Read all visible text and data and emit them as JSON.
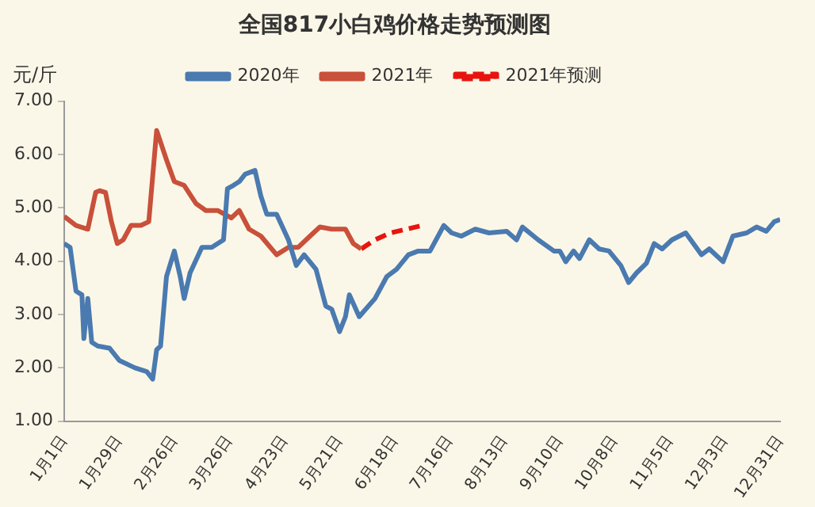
{
  "chart_data": {
    "type": "line",
    "title": "全国817小白鸡价格走势预测图",
    "ylabel": "元/斤",
    "legend": "top",
    "grid": false,
    "marker": "none",
    "xlim": [
      "--01-01",
      "--12-31"
    ],
    "xticks": [
      {
        "value": "--01-01",
        "label": "1月1日"
      },
      {
        "value": "--01-29",
        "label": "1月29日"
      },
      {
        "value": "--02-26",
        "label": "2月26日"
      },
      {
        "value": "--03-26",
        "label": "3月26日"
      },
      {
        "value": "--04-23",
        "label": "4月23日"
      },
      {
        "value": "--05-21",
        "label": "5月21日"
      },
      {
        "value": "--06-18",
        "label": "6月18日"
      },
      {
        "value": "--07-16",
        "label": "7月16日"
      },
      {
        "value": "--08-13",
        "label": "8月13日"
      },
      {
        "value": "--09-10",
        "label": "9月10日"
      },
      {
        "value": "--10-08",
        "label": "10月8日"
      },
      {
        "value": "--11-05",
        "label": "11月5日"
      },
      {
        "value": "--12-03",
        "label": "12月3日"
      },
      {
        "value": "--12-31",
        "label": "12月31日"
      }
    ],
    "ylim": [
      1,
      7
    ],
    "yticks": [
      {
        "value": 1,
        "label": "1.00"
      },
      {
        "value": 2,
        "label": "2.00"
      },
      {
        "value": 3,
        "label": "3.00"
      },
      {
        "value": 4,
        "label": "4.00"
      },
      {
        "value": 5,
        "label": "5.00"
      },
      {
        "value": 6,
        "label": "6.00"
      },
      {
        "value": 7,
        "label": "7.00"
      }
    ],
    "series": [
      {
        "name": "2020年",
        "color": "#4a7ab0",
        "line_style": "solid",
        "x": [
          "--01-01",
          "--01-04",
          "--01-07",
          "--01-10",
          "--01-11",
          "--01-13",
          "--01-15",
          "--01-18",
          "--01-24",
          "--01-29",
          "--02-06",
          "--02-12",
          "--02-15",
          "--02-17",
          "--02-19",
          "--02-22",
          "--02-26",
          "--03-01",
          "--03-03",
          "--03-06",
          "--03-12",
          "--03-17",
          "--03-23",
          "--03-25",
          "--03-28",
          "--03-31",
          "--04-03",
          "--04-08",
          "--04-11",
          "--04-14",
          "--04-19",
          "--04-25",
          "--04-29",
          "--05-03",
          "--05-09",
          "--05-14",
          "--05-17",
          "--05-21",
          "--05-24",
          "--05-26",
          "--05-31",
          "--06-08",
          "--06-14",
          "--06-19",
          "--06-25",
          "--06-30",
          "--07-06",
          "--07-13",
          "--07-17",
          "--07-22",
          "--07-29",
          "--08-05",
          "--08-14",
          "--08-19",
          "--08-22",
          "--08-30",
          "--09-07",
          "--09-10",
          "--09-13",
          "--09-17",
          "--09-20",
          "--09-25",
          "--09-30",
          "--10-05",
          "--10-11",
          "--10-15",
          "--10-19",
          "--10-24",
          "--10-28",
          "--11-01",
          "--11-06",
          "--11-13",
          "--11-21",
          "--11-25",
          "--12-02",
          "--12-07",
          "--12-14",
          "--12-19",
          "--12-24",
          "--12-28",
          "--12-31"
        ],
        "values": [
          4.33,
          4.26,
          3.44,
          3.37,
          2.55,
          3.3,
          2.48,
          2.41,
          2.37,
          2.14,
          2.0,
          1.93,
          1.79,
          2.34,
          2.41,
          3.71,
          4.19,
          3.71,
          3.3,
          3.78,
          4.26,
          4.26,
          4.4,
          5.36,
          5.42,
          5.49,
          5.63,
          5.7,
          5.22,
          4.88,
          4.88,
          4.4,
          3.92,
          4.12,
          3.85,
          3.16,
          3.1,
          2.68,
          2.96,
          3.37,
          2.96,
          3.3,
          3.71,
          3.85,
          4.12,
          4.19,
          4.19,
          4.67,
          4.53,
          4.47,
          4.6,
          4.53,
          4.56,
          4.4,
          4.64,
          4.4,
          4.19,
          4.19,
          3.99,
          4.19,
          4.05,
          4.4,
          4.23,
          4.19,
          3.92,
          3.6,
          3.78,
          3.96,
          4.33,
          4.23,
          4.4,
          4.53,
          4.12,
          4.23,
          3.99,
          4.47,
          4.53,
          4.64,
          4.56,
          4.74,
          4.78
        ]
      },
      {
        "name": "2021年",
        "color": "#c9503a",
        "line_style": "solid",
        "x": [
          "--01-01",
          "--01-07",
          "--01-13",
          "--01-17",
          "--01-19",
          "--01-22",
          "--01-25",
          "--01-28",
          "--01-31",
          "--02-04",
          "--02-09",
          "--02-13",
          "--02-17",
          "--02-22",
          "--02-26",
          "--03-03",
          "--03-09",
          "--03-14",
          "--03-20",
          "--03-27",
          "--03-31",
          "--04-05",
          "--04-11",
          "--04-19",
          "--04-25",
          "--04-30",
          "--05-06",
          "--05-11",
          "--05-17",
          "--05-24",
          "--05-28",
          "--06-01"
        ],
        "values": [
          4.84,
          4.67,
          4.6,
          5.29,
          5.32,
          5.29,
          4.74,
          4.33,
          4.4,
          4.67,
          4.67,
          4.74,
          6.45,
          5.9,
          5.49,
          5.42,
          5.08,
          4.95,
          4.95,
          4.81,
          4.95,
          4.6,
          4.47,
          4.12,
          4.26,
          4.26,
          4.47,
          4.64,
          4.6,
          4.6,
          4.33,
          4.23
        ]
      },
      {
        "name": "2021年预测",
        "color": "#e8140f",
        "line_style": "dashed",
        "x": [
          "--06-01",
          "--06-08",
          "--06-16",
          "--06-24",
          "--07-02"
        ],
        "values": [
          4.23,
          4.4,
          4.53,
          4.6,
          4.67
        ]
      }
    ]
  }
}
